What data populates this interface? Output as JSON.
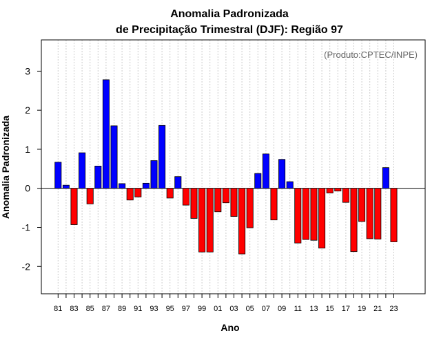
{
  "chart_data": {
    "type": "bar",
    "title_line1": "Anomalia Padronizada",
    "title_line2": "de Precipitação Trimestral (DJF): Região 97",
    "xlabel": "Ano",
    "ylabel": "Anomalia Padronizada",
    "credit": "(Produto:CPTEC/INPE)",
    "ylim": [
      -2.7,
      3.8
    ],
    "yticks": [
      -2,
      -1,
      0,
      1,
      2,
      3
    ],
    "categories": [
      "81",
      "82",
      "83",
      "84",
      "85",
      "86",
      "87",
      "88",
      "89",
      "90",
      "91",
      "92",
      "93",
      "94",
      "95",
      "96",
      "97",
      "98",
      "99",
      "00",
      "01",
      "02",
      "03",
      "04",
      "05",
      "06",
      "07",
      "08",
      "09",
      "10",
      "11",
      "12",
      "13",
      "14",
      "15",
      "16",
      "17",
      "18",
      "19",
      "20",
      "21",
      "22",
      "23"
    ],
    "xtick_labels": [
      "81",
      "83",
      "85",
      "87",
      "89",
      "91",
      "93",
      "95",
      "97",
      "99",
      "01",
      "03",
      "05",
      "07",
      "09",
      "11",
      "13",
      "15",
      "17",
      "19",
      "21",
      "23"
    ],
    "values": [
      0.67,
      0.08,
      -0.93,
      0.91,
      -0.4,
      0.57,
      2.78,
      1.6,
      0.12,
      -0.3,
      -0.22,
      0.13,
      0.71,
      1.61,
      -0.25,
      0.3,
      -0.43,
      -0.77,
      -1.63,
      -1.63,
      -0.6,
      -0.37,
      -0.72,
      -1.68,
      -1.01,
      0.38,
      0.88,
      -0.81,
      0.74,
      0.17,
      -1.4,
      -1.31,
      -1.33,
      -1.53,
      -0.12,
      -0.07,
      -0.36,
      -1.62,
      -0.85,
      -1.29,
      -1.3,
      0.53,
      -1.37
    ],
    "colors": {
      "positive": "#0000ff",
      "negative": "#ff0000",
      "grid": "#cccccc",
      "frame": "#000000"
    }
  }
}
